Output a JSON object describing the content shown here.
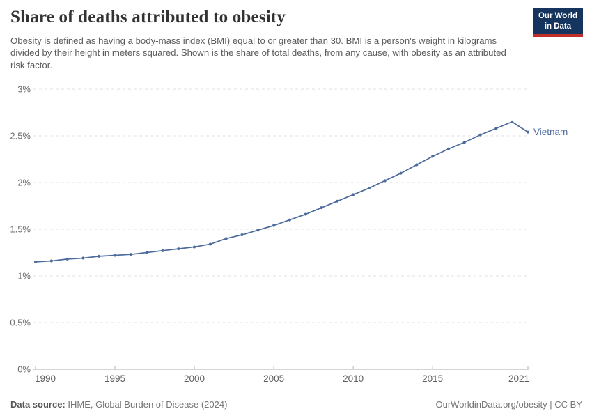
{
  "header": {
    "title": "Share of deaths attributed to obesity",
    "subtitle": "Obesity is defined as having a body-mass index (BMI) equal to or greater than 30. BMI is a person's weight in kilograms divided by their height in meters squared. Shown is the share of total deaths, from any cause, with obesity as an attributed risk factor.",
    "logo": {
      "line1": "Our World",
      "line2": "in Data",
      "bg_color": "#16355e",
      "stripe_color": "#c22f2a"
    }
  },
  "chart_data": {
    "type": "line",
    "title": "Share of deaths attributed to obesity",
    "xlabel": "",
    "ylabel": "",
    "xlim": [
      1990,
      2021
    ],
    "ylim": [
      0,
      3
    ],
    "grid": "horizontal-dashed",
    "legend_position": "end-of-line-label",
    "x_ticks": [
      "1990",
      "1995",
      "2000",
      "2005",
      "2010",
      "2015",
      "2021"
    ],
    "y_axis": {
      "ticks": [
        {
          "value": 0,
          "label": "0%"
        },
        {
          "value": 0.5,
          "label": "0.5%"
        },
        {
          "value": 1,
          "label": "1%"
        },
        {
          "value": 1.5,
          "label": "1.5%"
        },
        {
          "value": 2,
          "label": "2%"
        },
        {
          "value": 2.5,
          "label": "2.5%"
        },
        {
          "value": 3,
          "label": "3%"
        }
      ]
    },
    "series": [
      {
        "name": "Vietnam",
        "color": "#4C6A9C",
        "x": [
          1990,
          1991,
          1992,
          1993,
          1994,
          1995,
          1996,
          1997,
          1998,
          1999,
          2000,
          2001,
          2002,
          2003,
          2004,
          2005,
          2006,
          2007,
          2008,
          2009,
          2010,
          2011,
          2012,
          2013,
          2014,
          2015,
          2016,
          2017,
          2018,
          2019,
          2020,
          2021
        ],
        "values": [
          1.15,
          1.16,
          1.18,
          1.19,
          1.21,
          1.22,
          1.23,
          1.25,
          1.27,
          1.29,
          1.31,
          1.34,
          1.4,
          1.44,
          1.49,
          1.54,
          1.6,
          1.66,
          1.73,
          1.8,
          1.87,
          1.94,
          2.02,
          2.1,
          2.19,
          2.28,
          2.36,
          2.43,
          2.51,
          2.58,
          2.65,
          2.54
        ]
      }
    ],
    "colors": {
      "gridline": "#e2e2e2",
      "axis_line": "#ababab",
      "tick_mark": "#b6b6b6",
      "y_tick_label": "#6e6e6e",
      "x_tick_label": "#5d5d5d"
    }
  },
  "footer": {
    "source_label": "Data source:",
    "source_text": " IHME, Global Burden of Disease (2024)",
    "credit": "OurWorldinData.org/obesity | CC BY"
  }
}
